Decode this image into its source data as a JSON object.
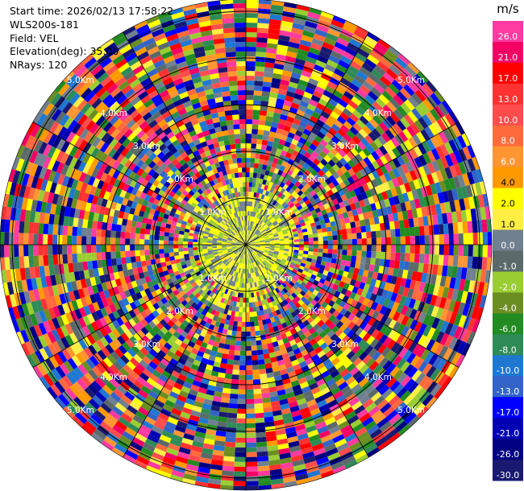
{
  "info": {
    "start_time": "Start time: 2026/02/13 17:58:22",
    "instrument": "WLS200s-181",
    "field": "Field: VEL",
    "elevation": "Elevation(deg): 35.00",
    "nrays": "NRays: 120"
  },
  "colorbar": {
    "unit": "m/s",
    "ticks": [
      "26.0",
      "21.0",
      "17.0",
      "13.0",
      "10.0",
      "8.0",
      "6.0",
      "4.0",
      "2.0",
      "1.0",
      "0.0",
      "-1.0",
      "-2.0",
      "-4.0",
      "-6.0",
      "-8.0",
      "-10.0",
      "-13.0",
      "-17.0",
      "-21.0",
      "-26.0",
      "-30.0"
    ],
    "colors": [
      "#ff3aa0",
      "#f40064",
      "#ff0000",
      "#ff3232",
      "#ff4d4d",
      "#ff6a3c",
      "#ff9632",
      "#ff9900",
      "#ffff00",
      "#ffee44",
      "#708090",
      "#5a6a6a",
      "#9acd32",
      "#6b8e23",
      "#228b22",
      "#2e8b57",
      "#1e78d2",
      "#3264c8",
      "#0000ff",
      "#0000b4",
      "#000080",
      "#191970"
    ]
  },
  "chart_data": {
    "type": "ppi_scan",
    "field": "VEL",
    "unit": "m/s",
    "nrays": 120,
    "range_ring_labels": [
      "1.0Km",
      "2.0Km",
      "3.0Km",
      "4.0Km",
      "5.0Km"
    ],
    "colorbar_levels": [
      26.0,
      21.0,
      17.0,
      13.0,
      10.0,
      8.0,
      6.0,
      4.0,
      2.0,
      1.0,
      0.0,
      -1.0,
      -2.0,
      -4.0,
      -6.0,
      -8.0,
      -10.0,
      -13.0,
      -17.0,
      -21.0,
      -26.0,
      -30.0
    ]
  }
}
